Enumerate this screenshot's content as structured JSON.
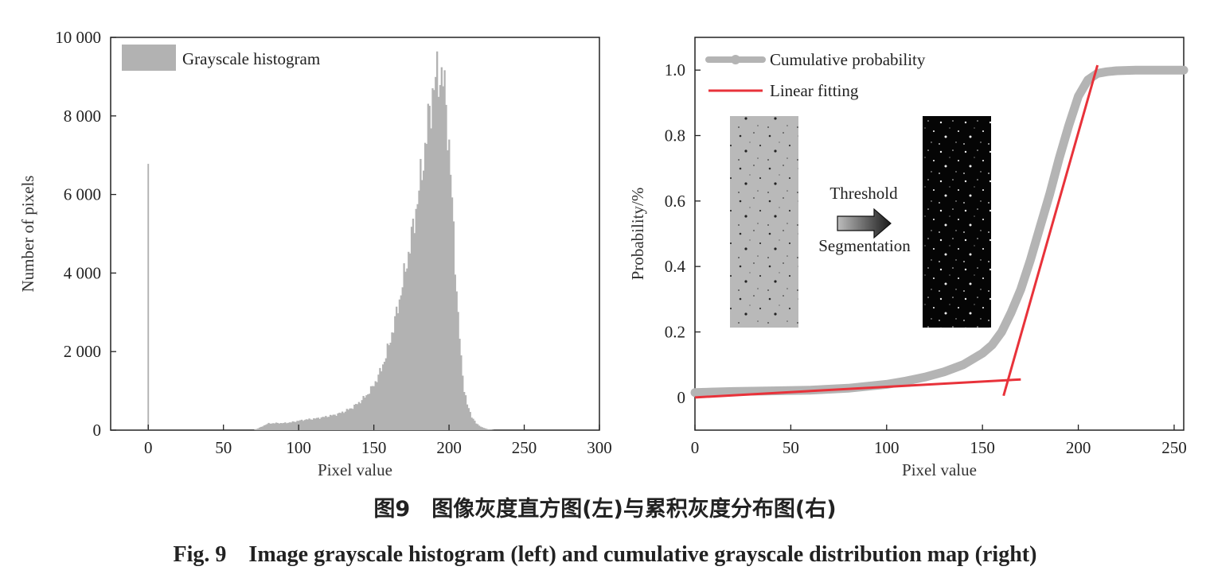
{
  "caption_cn": "图9　图像灰度直方图(左)与累积灰度分布图(右)",
  "caption_en": "Fig. 9　Image grayscale histogram (left) and cumulative grayscale distribution map (right)",
  "colors": {
    "histogram": "#b2b2b2",
    "cumulative": "#b4b4b4",
    "linear": "#e8323a",
    "axis": "#222222"
  },
  "chart_data": [
    {
      "type": "bar",
      "title": "",
      "xlabel": "Pixel value",
      "ylabel": "Number of pixels",
      "xlim": [
        -25,
        300
      ],
      "ylim": [
        0,
        10000
      ],
      "xticks": [
        0,
        50,
        100,
        150,
        200,
        250,
        300
      ],
      "xtick_labels": [
        "0",
        "50",
        "100",
        "150",
        "200",
        "250",
        "300"
      ],
      "yticks": [
        0,
        2000,
        4000,
        6000,
        8000,
        10000
      ],
      "ytick_labels": [
        "0",
        "2 000",
        "4 000",
        "6 000",
        "8 000",
        "10 000"
      ],
      "legend": [
        "Grayscale histogram"
      ],
      "legend_position": "top-left",
      "series": [
        {
          "name": "Grayscale histogram",
          "x": [
            0,
            70,
            72,
            75,
            78,
            80,
            85,
            90,
            95,
            100,
            105,
            110,
            115,
            120,
            125,
            130,
            135,
            140,
            145,
            150,
            155,
            160,
            165,
            170,
            175,
            180,
            183,
            186,
            189,
            192,
            194,
            196,
            198,
            200,
            202,
            204,
            206,
            208,
            210,
            212,
            215,
            218,
            222,
            226,
            230
          ],
          "values": [
            6780,
            0,
            30,
            80,
            140,
            170,
            180,
            180,
            200,
            240,
            270,
            290,
            320,
            360,
            400,
            470,
            560,
            700,
            880,
            1150,
            1550,
            2150,
            2950,
            3900,
            4900,
            6100,
            6900,
            7800,
            8600,
            9000,
            9100,
            8900,
            8300,
            7200,
            5800,
            4300,
            2900,
            1800,
            1050,
            650,
            350,
            170,
            70,
            20,
            0
          ]
        }
      ]
    },
    {
      "type": "line",
      "title": "",
      "xlabel": "Pixel value",
      "ylabel": "Probability/%",
      "xlim": [
        0,
        255
      ],
      "ylim": [
        -0.1,
        1.1
      ],
      "xticks": [
        0,
        50,
        100,
        150,
        200,
        250
      ],
      "xtick_labels": [
        "0",
        "50",
        "100",
        "150",
        "200",
        "250"
      ],
      "yticks": [
        0,
        0.2,
        0.4,
        0.6,
        0.8,
        1.0
      ],
      "ytick_labels": [
        "0",
        "0.2",
        "0.4",
        "0.6",
        "0.8",
        "1.0"
      ],
      "legend": [
        "Cumulative probability",
        "Linear fitting"
      ],
      "legend_position": "top-left",
      "series": [
        {
          "name": "Cumulative probability",
          "x": [
            0,
            20,
            40,
            60,
            80,
            100,
            110,
            120,
            130,
            140,
            150,
            155,
            160,
            165,
            170,
            175,
            180,
            185,
            190,
            195,
            200,
            205,
            210,
            215,
            220,
            230,
            240,
            255
          ],
          "values": [
            0.015,
            0.018,
            0.02,
            0.022,
            0.028,
            0.04,
            0.05,
            0.062,
            0.078,
            0.1,
            0.135,
            0.16,
            0.2,
            0.26,
            0.33,
            0.42,
            0.52,
            0.62,
            0.73,
            0.83,
            0.92,
            0.97,
            0.99,
            0.995,
            0.998,
            1.0,
            1.0,
            1.0
          ]
        },
        {
          "name": "Linear fitting",
          "segments": [
            {
              "x": [
                0,
                170
              ],
              "values": [
                0.0,
                0.055
              ]
            },
            {
              "x": [
                161,
                210
              ],
              "values": [
                0.005,
                1.015
              ]
            }
          ]
        }
      ],
      "annotations": {
        "arrow_label_top": "Threshold",
        "arrow_label_bottom": "Segmentation"
      }
    }
  ]
}
